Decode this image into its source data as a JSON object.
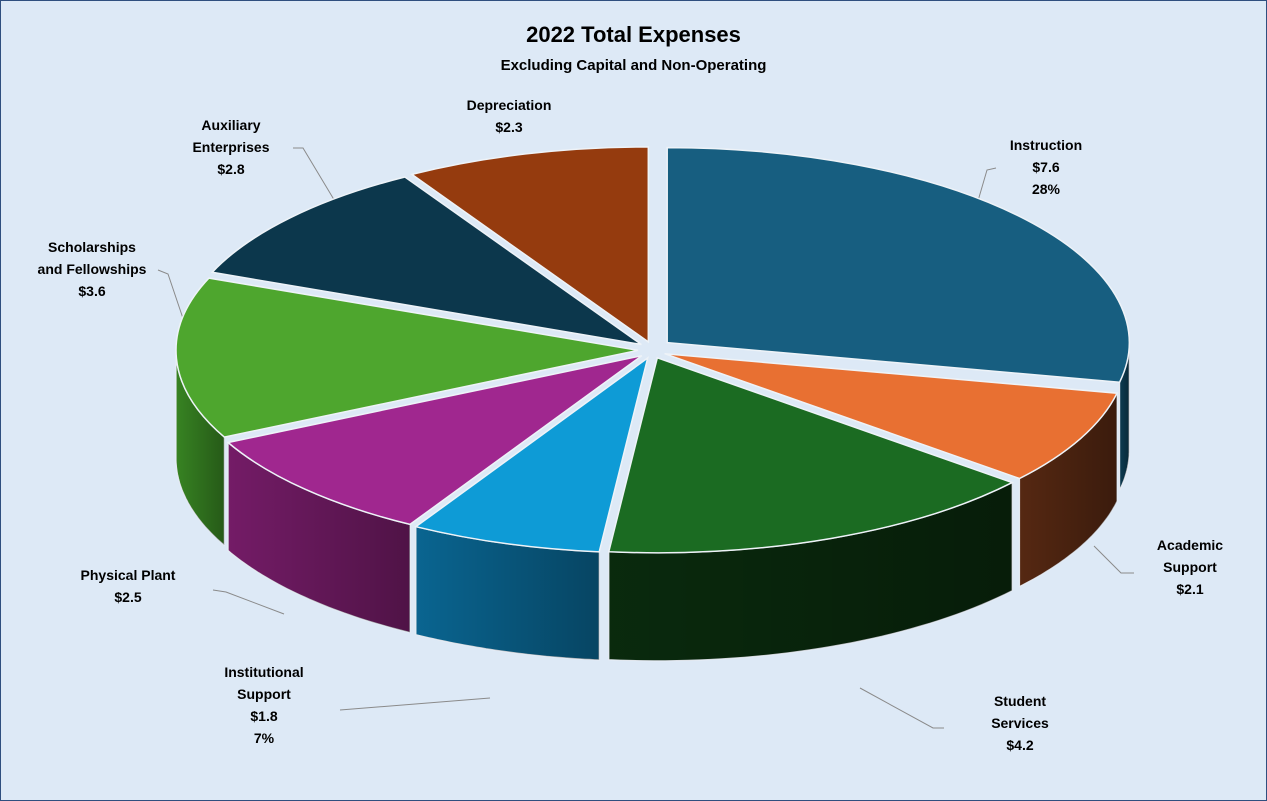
{
  "title": "2022 Total Expenses",
  "subtitle": "Excluding Capital and Non-Operating",
  "chart_data": {
    "type": "pie",
    "variant": "3d-exploded",
    "title": "2022 Total Expenses",
    "subtitle": "Excluding Capital and Non-Operating",
    "legend": "none",
    "slices": [
      {
        "name": "Instruction",
        "value": 7.6,
        "display": "$7.6",
        "percent": "28%",
        "color": "#175e80",
        "label_lines": [
          "Instruction",
          "$7.6",
          "28%"
        ]
      },
      {
        "name": "Academic Support",
        "value": 2.1,
        "display": "$2.1",
        "color": "#e87032",
        "label_lines": [
          "Academic",
          "Support",
          "$2.1"
        ]
      },
      {
        "name": "Student Services",
        "value": 4.2,
        "display": "$4.2",
        "color": "#1b6b22",
        "label_lines": [
          "Student",
          "Services",
          "$4.2"
        ]
      },
      {
        "name": "Institutional Support",
        "value": 1.8,
        "display": "$1.8",
        "percent": "7%",
        "color": "#0e9bd6",
        "label_lines": [
          "Institutional",
          "Support",
          "$1.8",
          "7%"
        ]
      },
      {
        "name": "Physical Plant",
        "value": 2.5,
        "display": "$2.5",
        "color": "#a0278f",
        "label_lines": [
          "Physical Plant",
          "$2.5"
        ]
      },
      {
        "name": "Scholarships and Fellowships",
        "value": 3.6,
        "display": "$3.6",
        "color": "#4ea62e",
        "label_lines": [
          "Scholarships",
          "and Fellowships",
          "$3.6"
        ]
      },
      {
        "name": "Auxiliary Enterprises",
        "value": 2.8,
        "display": "$2.8",
        "color": "#0c374c",
        "label_lines": [
          "Auxiliary",
          "Enterprises",
          "$2.8"
        ]
      },
      {
        "name": "Depreciation",
        "value": 2.3,
        "display": "$2.3",
        "color": "#953b0e",
        "label_lines": [
          "Depreciation",
          "$2.3"
        ]
      }
    ]
  }
}
